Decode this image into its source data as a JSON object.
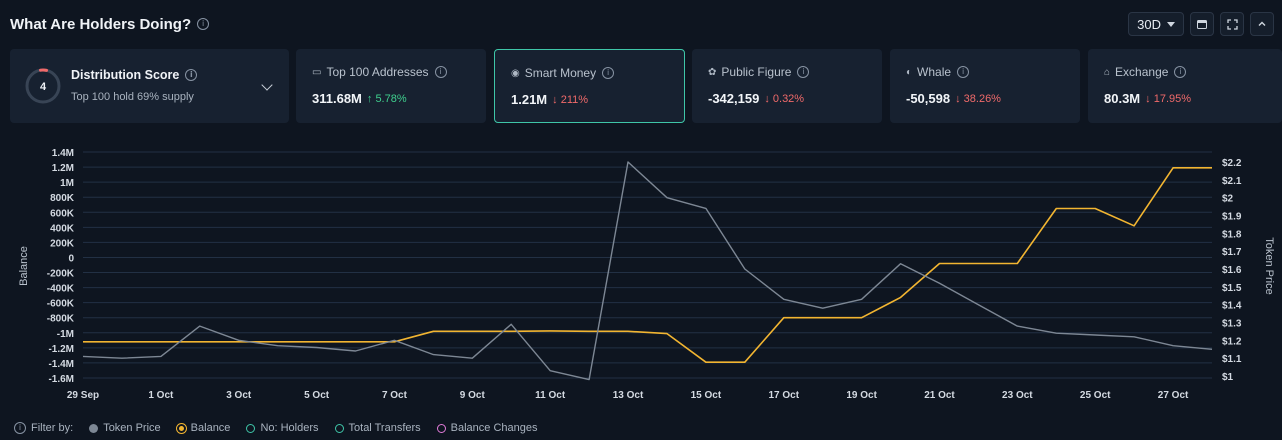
{
  "header": {
    "title": "What Are Holders Doing?",
    "period": "30D"
  },
  "distribution": {
    "score": "4",
    "title": "Distribution Score",
    "subtitle": "Top 100 hold 69% supply"
  },
  "cards": [
    {
      "label": "Top 100 Addresses",
      "icon": "wallet-icon",
      "value": "311.68M",
      "change": "5.78%",
      "direction": "up",
      "active": false
    },
    {
      "label": "Smart Money",
      "icon": "smart-money-icon",
      "value": "1.21M",
      "change": "211%",
      "direction": "down",
      "active": true
    },
    {
      "label": "Public Figure",
      "icon": "public-figure-icon",
      "value": "-342,159",
      "change": "0.32%",
      "direction": "down",
      "active": false
    },
    {
      "label": "Whale",
      "icon": "whale-icon",
      "value": "-50,598",
      "change": "38.26%",
      "direction": "down",
      "active": false
    },
    {
      "label": "Exchange",
      "icon": "exchange-icon",
      "value": "80.3M",
      "change": "17.95%",
      "direction": "down",
      "active": false
    }
  ],
  "legend": {
    "filter_label": "Filter by:",
    "items": [
      {
        "label": "Token Price",
        "color": "#7d8794",
        "filled": true
      },
      {
        "label": "Balance",
        "color": "#f2b531",
        "filled": true
      },
      {
        "label": "No: Holders",
        "color": "#3fc6a8",
        "filled": false
      },
      {
        "label": "Total Transfers",
        "color": "#3fc6a8",
        "filled": false
      },
      {
        "label": "Balance Changes",
        "color": "#e07ad8",
        "filled": false
      }
    ]
  },
  "chart_data": {
    "type": "line",
    "xlabel": "",
    "ylabel_left": "Balance",
    "ylabel_right": "Token Price",
    "x_tick_labels": [
      "29 Sep",
      "1 Oct",
      "3 Oct",
      "5 Oct",
      "7 Oct",
      "9 Oct",
      "11 Oct",
      "13 Oct",
      "15 Oct",
      "17 Oct",
      "19 Oct",
      "21 Oct",
      "23 Oct",
      "25 Oct",
      "27 Oct"
    ],
    "y_left_ticks": [
      "1.4M",
      "1.2M",
      "1M",
      "800K",
      "600K",
      "400K",
      "200K",
      "0",
      "-200K",
      "-400K",
      "-600K",
      "-800K",
      "-1M",
      "-1.2M",
      "-1.4M",
      "-1.6M"
    ],
    "y_right_ticks": [
      "$2.2",
      "$2.1",
      "$2",
      "$1.9",
      "$1.8",
      "$1.7",
      "$1.6",
      "$1.5",
      "$1.4",
      "$1.3",
      "$1.2",
      "$1.1",
      "$1"
    ],
    "y_left_range": [
      -1600000,
      1400000
    ],
    "y_right_range": [
      1.0,
      2.2
    ],
    "x": [
      "29 Sep",
      "30 Sep",
      "1 Oct",
      "2 Oct",
      "3 Oct",
      "4 Oct",
      "5 Oct",
      "6 Oct",
      "7 Oct",
      "8 Oct",
      "9 Oct",
      "10 Oct",
      "11 Oct",
      "12 Oct",
      "13 Oct",
      "14 Oct",
      "15 Oct",
      "16 Oct",
      "17 Oct",
      "18 Oct",
      "19 Oct",
      "20 Oct",
      "21 Oct",
      "22 Oct",
      "23 Oct",
      "24 Oct",
      "25 Oct",
      "26 Oct",
      "27 Oct",
      "28 Oct"
    ],
    "series": [
      {
        "name": "Balance",
        "axis": "left",
        "color": "#f2b531",
        "values": [
          -1120000,
          -1120000,
          -1120000,
          -1120000,
          -1120000,
          -1120000,
          -1120000,
          -1120000,
          -1120000,
          -980000,
          -980000,
          -980000,
          -975000,
          -980000,
          -980000,
          -1010000,
          -1390000,
          -1390000,
          -800000,
          -800000,
          -800000,
          -530000,
          -80000,
          -80000,
          -80000,
          650000,
          650000,
          420000,
          1190000,
          1190000
        ]
      },
      {
        "name": "Token Price",
        "axis": "right",
        "color": "#7d8794",
        "values": [
          1.11,
          1.1,
          1.11,
          1.28,
          1.2,
          1.17,
          1.16,
          1.14,
          1.2,
          1.12,
          1.1,
          1.29,
          1.03,
          0.98,
          2.2,
          2.0,
          1.94,
          1.6,
          1.43,
          1.38,
          1.43,
          1.63,
          1.52,
          1.4,
          1.28,
          1.24,
          1.23,
          1.22,
          1.17,
          1.15
        ]
      }
    ],
    "grid": true,
    "legend": "bottom-left"
  }
}
